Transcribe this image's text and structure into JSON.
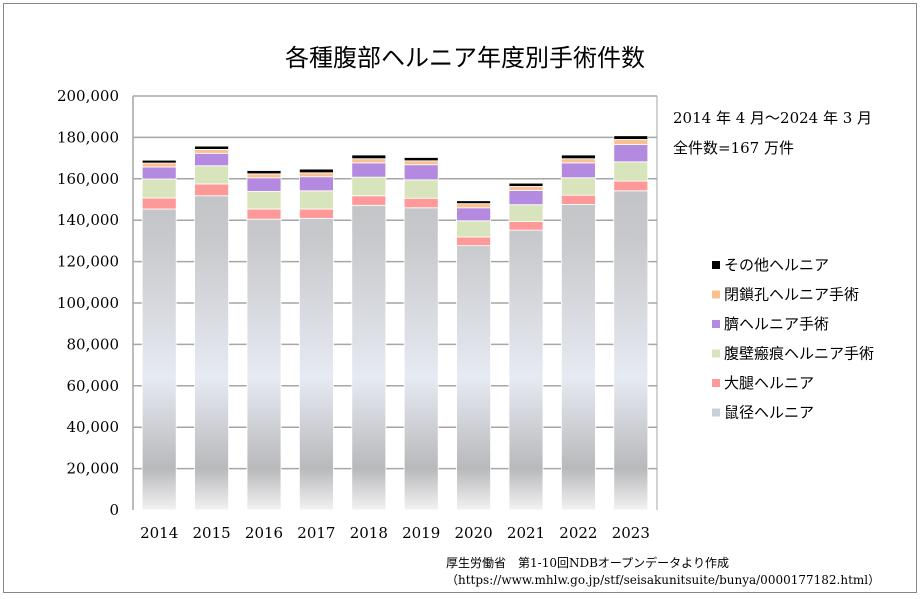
{
  "chart_data": {
    "type": "bar",
    "stacked": true,
    "title": "各種腹部ヘルニア年度別手術件数",
    "categories": [
      "2014",
      "2015",
      "2016",
      "2017",
      "2018",
      "2019",
      "2020",
      "2021",
      "2022",
      "2023"
    ],
    "ylim": [
      0,
      200000
    ],
    "yticks": [
      "0",
      "20,000",
      "40,000",
      "60,000",
      "80,000",
      "100,000",
      "120,000",
      "140,000",
      "160,000",
      "180,000",
      "200,000"
    ],
    "grid": true,
    "legend_placement": "right",
    "series": [
      {
        "name": "鼠径ヘルニア",
        "color": "#c4c6ca",
        "values": [
          145400,
          151800,
          140500,
          140900,
          147200,
          146000,
          127700,
          135200,
          147600,
          154200
        ]
      },
      {
        "name": "大腿ヘルニア",
        "color": "#ff9999",
        "values": [
          5300,
          5700,
          4900,
          4500,
          4600,
          4600,
          4200,
          4200,
          4500,
          4700
        ]
      },
      {
        "name": "腹壁瘢痕ヘルニア手術",
        "color": "#d8e4bc",
        "values": [
          9200,
          8800,
          8500,
          8800,
          9000,
          8900,
          7800,
          8100,
          8400,
          9300
        ]
      },
      {
        "name": "臍ヘルニア手術",
        "color": "#b48ae0",
        "values": [
          5800,
          6000,
          6600,
          6800,
          6900,
          7300,
          6300,
          6900,
          7200,
          8400
        ]
      },
      {
        "name": "閉鎖孔ヘルニア手術",
        "color": "#fac090",
        "values": [
          1900,
          1900,
          1900,
          1900,
          2000,
          1900,
          2000,
          1900,
          2000,
          2400
        ]
      },
      {
        "name": "その他ヘルニア",
        "color": "#000000",
        "values": [
          1400,
          1600,
          1600,
          1800,
          1800,
          1600,
          1400,
          1600,
          1800,
          1800
        ]
      }
    ],
    "annotations": [
      "2014 年 4 月～2024 年 3 月",
      "全件数=167 万件"
    ],
    "source": [
      "厚生労働省　第1-10回NDBオープンデータより作成",
      "（https://www.mhlw.go.jp/stf/seisakunitsuite/bunya/0000177182.html）"
    ]
  }
}
